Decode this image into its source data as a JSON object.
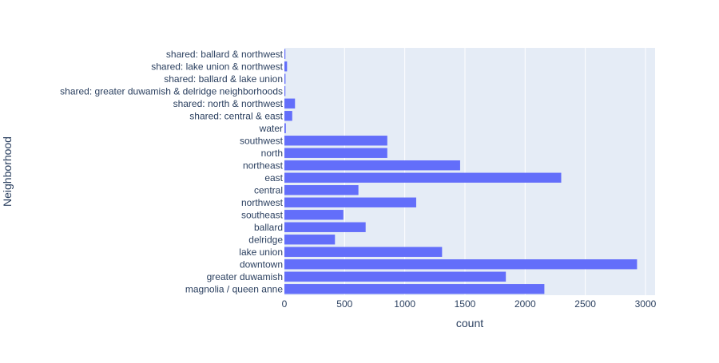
{
  "chart_data": {
    "type": "bar",
    "orientation": "horizontal",
    "xlabel": "count",
    "ylabel": "Neighborhood",
    "xlim": [
      0,
      3080
    ],
    "xticks": [
      0,
      500,
      1000,
      1500,
      2000,
      2500,
      3000
    ],
    "grid": true,
    "legend": "none",
    "colors": {
      "bar": "#636efa",
      "plot_bg": "#e5ecf6",
      "grid": "#ffffff",
      "text": "#2a3f5f"
    },
    "categories": [
      "shared: ballard & northwest",
      "shared: lake union & northwest",
      "shared: ballard & lake union",
      "shared: greater duwamish & delridge neighborhoods",
      "shared: north & northwest",
      "shared: central & east",
      "water",
      "southwest",
      "north",
      "northeast",
      "east",
      "central",
      "northwest",
      "southeast",
      "ballard",
      "delridge",
      "lake union",
      "downtown",
      "greater duwamish",
      "magnolia / queen anne"
    ],
    "values": [
      4,
      22,
      9,
      8,
      88,
      65,
      12,
      855,
      855,
      1460,
      2300,
      615,
      1095,
      490,
      675,
      420,
      1310,
      2930,
      1840,
      2160
    ]
  }
}
